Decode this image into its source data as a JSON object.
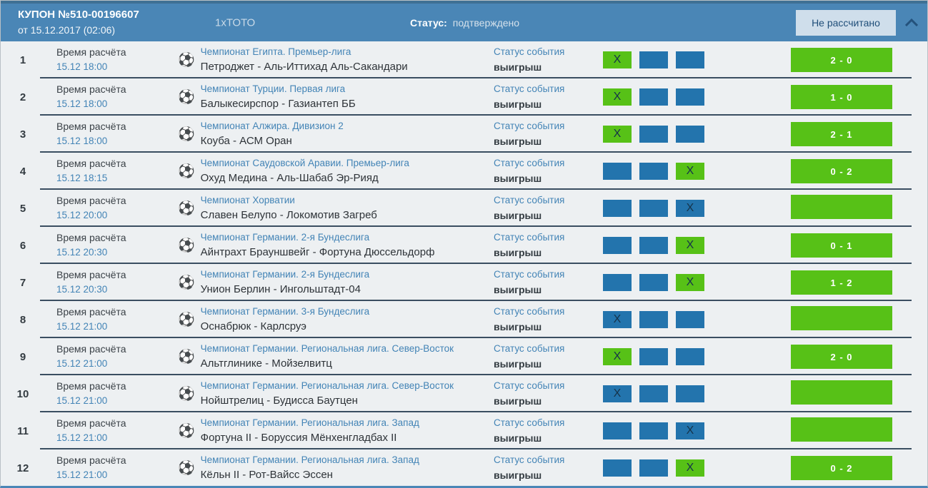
{
  "colors": {
    "header_bg": "#4a86b6",
    "header_top_edge": "#3f7094",
    "accent_green": "#57c117",
    "box_blue": "#2374ad",
    "link_blue": "#4384b6",
    "row_bg": "#edf0f2",
    "divider": "#3a4e61",
    "result_button_bg": "#cfdeeb",
    "result_button_text": "#1f4e79"
  },
  "header": {
    "coupon_title": "КУПОН №510-00196607",
    "coupon_date": "от 15.12.2017 (02:06)",
    "product": "1хТОТО",
    "status_label": "Статус:",
    "status_value": "подтверждено",
    "result_button": "Не рассчитано",
    "chevron_icon": "chevron-up"
  },
  "labels": {
    "time_label": "Время расчёта",
    "event_status_label": "Статус события"
  },
  "rows": [
    {
      "num": "1",
      "time": "15.12 18:00",
      "league": "Чемпионат Египта. Премьер-лига",
      "match": "Петроджет - Аль-Иттихад Аль-Сакандари",
      "event_status": "выигрыш",
      "picks": [
        {
          "color": "green",
          "x": true
        },
        {
          "color": "blue",
          "x": false
        },
        {
          "color": "blue",
          "x": false
        }
      ],
      "score": "2 - 0"
    },
    {
      "num": "2",
      "time": "15.12 18:00",
      "league": "Чемпионат Турции. Первая лига",
      "match": "Балыкесирспор - Газиантеп ББ",
      "event_status": "выигрыш",
      "picks": [
        {
          "color": "green",
          "x": true
        },
        {
          "color": "blue",
          "x": false
        },
        {
          "color": "blue",
          "x": false
        }
      ],
      "score": "1 - 0"
    },
    {
      "num": "3",
      "time": "15.12 18:00",
      "league": "Чемпионат Алжира. Дивизион 2",
      "match": "Коуба - АСМ Оран",
      "event_status": "выигрыш",
      "picks": [
        {
          "color": "green",
          "x": true
        },
        {
          "color": "blue",
          "x": false
        },
        {
          "color": "blue",
          "x": false
        }
      ],
      "score": "2 - 1"
    },
    {
      "num": "4",
      "time": "15.12 18:15",
      "league": "Чемпионат Саудовской Аравии. Премьер-лига",
      "match": "Охуд Медина - Аль-Шабаб Эр-Рияд",
      "event_status": "выигрыш",
      "picks": [
        {
          "color": "blue",
          "x": false
        },
        {
          "color": "blue",
          "x": false
        },
        {
          "color": "green",
          "x": true
        }
      ],
      "score": "0 - 2"
    },
    {
      "num": "5",
      "time": "15.12 20:00",
      "league": "Чемпионат Хорватии",
      "match": "Славен Белупо - Локомотив Загреб",
      "event_status": "выигрыш",
      "picks": [
        {
          "color": "blue",
          "x": false
        },
        {
          "color": "blue",
          "x": false
        },
        {
          "color": "blue",
          "x": true
        }
      ],
      "score": ""
    },
    {
      "num": "6",
      "time": "15.12 20:30",
      "league": "Чемпионат Германии. 2-я Бундеслига",
      "match": "Айнтрахт Брауншвейг - Фортуна Дюссельдорф",
      "event_status": "выигрыш",
      "picks": [
        {
          "color": "blue",
          "x": false
        },
        {
          "color": "blue",
          "x": false
        },
        {
          "color": "green",
          "x": true
        }
      ],
      "score": "0 - 1"
    },
    {
      "num": "7",
      "time": "15.12 20:30",
      "league": "Чемпионат Германии. 2-я Бундеслига",
      "match": "Унион Берлин - Ингольштадт-04",
      "event_status": "выигрыш",
      "picks": [
        {
          "color": "blue",
          "x": false
        },
        {
          "color": "blue",
          "x": false
        },
        {
          "color": "green",
          "x": true
        }
      ],
      "score": "1 - 2"
    },
    {
      "num": "8",
      "time": "15.12 21:00",
      "league": "Чемпионат Германии. 3-я Бундеслига",
      "match": "Оснабрюк - Карлсруэ",
      "event_status": "выигрыш",
      "picks": [
        {
          "color": "blue",
          "x": true
        },
        {
          "color": "blue",
          "x": false
        },
        {
          "color": "blue",
          "x": false
        }
      ],
      "score": ""
    },
    {
      "num": "9",
      "time": "15.12 21:00",
      "league": "Чемпионат Германии. Региональная лига. Север-Восток",
      "match": "Альтглинике - Мойзелвитц",
      "event_status": "выигрыш",
      "picks": [
        {
          "color": "green",
          "x": true
        },
        {
          "color": "blue",
          "x": false
        },
        {
          "color": "blue",
          "x": false
        }
      ],
      "score": "2 - 0"
    },
    {
      "num": "10",
      "time": "15.12 21:00",
      "league": "Чемпионат Германии. Региональная лига. Север-Восток",
      "match": "Нойштрелиц - Будисса Баутцен",
      "event_status": "выигрыш",
      "picks": [
        {
          "color": "blue",
          "x": true
        },
        {
          "color": "blue",
          "x": false
        },
        {
          "color": "blue",
          "x": false
        }
      ],
      "score": ""
    },
    {
      "num": "11",
      "time": "15.12 21:00",
      "league": "Чемпионат Германии. Региональная лига. Запад",
      "match": "Фортуна II - Боруссия Мёнхенгладбах II",
      "event_status": "выигрыш",
      "picks": [
        {
          "color": "blue",
          "x": false
        },
        {
          "color": "blue",
          "x": false
        },
        {
          "color": "blue",
          "x": true
        }
      ],
      "score": ""
    },
    {
      "num": "12",
      "time": "15.12 21:00",
      "league": "Чемпионат Германии. Региональная лига. Запад",
      "match": "Кёльн II - Рот-Вайсс Эссен",
      "event_status": "выигрыш",
      "picks": [
        {
          "color": "blue",
          "x": false
        },
        {
          "color": "blue",
          "x": false
        },
        {
          "color": "green",
          "x": true
        }
      ],
      "score": "0 - 2"
    }
  ]
}
